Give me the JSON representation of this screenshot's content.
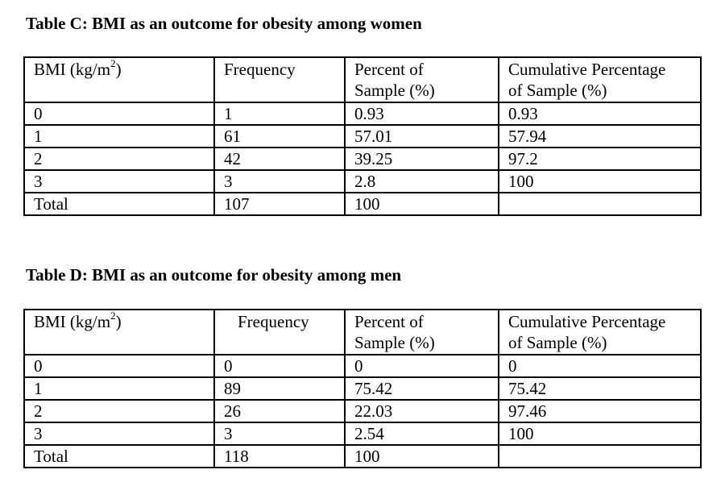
{
  "tables": [
    {
      "caption": "Table C: BMI as an outcome for obesity among women",
      "headers": {
        "bmi": "BMI (kg/m",
        "bmi_sup": "2",
        "bmi_close": ")",
        "frequency": "Frequency",
        "percent_line1": "Percent of",
        "percent_line2": "Sample (%)",
        "cumulative_line1": "Cumulative Percentage",
        "cumulative_line2": "of Sample (%)"
      },
      "rows": [
        [
          "0",
          "1",
          "0.93",
          "0.93"
        ],
        [
          "1",
          "61",
          "57.01",
          "57.94"
        ],
        [
          "2",
          "42",
          "39.25",
          "97.2"
        ],
        [
          "3",
          "3",
          "2.8",
          "100"
        ],
        [
          "Total",
          "107",
          "100",
          ""
        ]
      ]
    },
    {
      "caption": "Table D: BMI as an outcome for obesity among men",
      "headers": {
        "bmi": "BMI (kg/m",
        "bmi_sup": "2",
        "bmi_close": ")",
        "frequency": "Frequency",
        "percent_line1": "Percent of",
        "percent_line2": "Sample (%)",
        "cumulative_line1": "Cumulative Percentage",
        "cumulative_line2": "of Sample (%)"
      },
      "rows": [
        [
          "0",
          "0",
          "0",
          "0"
        ],
        [
          "1",
          "89",
          "75.42",
          "75.42"
        ],
        [
          "2",
          "26",
          "22.03",
          "97.46"
        ],
        [
          "3",
          "3",
          "2.54",
          "100"
        ],
        [
          "Total",
          "118",
          "100",
          ""
        ]
      ]
    }
  ]
}
